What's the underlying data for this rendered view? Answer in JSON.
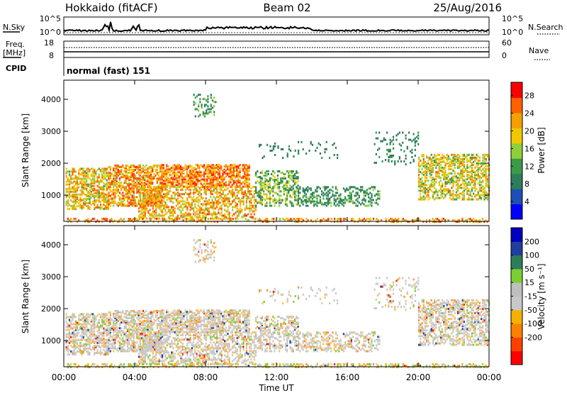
{
  "header": {
    "station": "Hokkaido (fitACF)",
    "beam": "Beam 02",
    "date": "25/Aug/2016"
  },
  "top_panels": {
    "nsky": {
      "label": "N.Sky",
      "left_ticks": [
        "10^5",
        "10^0"
      ],
      "right_ticks": [
        "10^5",
        "10^0"
      ],
      "right_label": "N.Search"
    },
    "freq": {
      "label_lines": [
        "Freq.",
        "[MHz]"
      ],
      "left_ticks": [
        "18",
        "8"
      ],
      "right_ticks": [
        "60",
        "0"
      ],
      "right_label": "Nave"
    },
    "cpid": {
      "label": "CPID",
      "text": "normal (fast) 151"
    }
  },
  "colors": {
    "power_scale": [
      "#0000ff",
      "#1e4fb4",
      "#2e7d5a",
      "#3a9a4a",
      "#8fcf3a",
      "#f0c800",
      "#f5a000",
      "#ff6000",
      "#ff2a00",
      "#ff0000"
    ],
    "velocity_scale": [
      "#0000c0",
      "#1f3fa0",
      "#2e7d5a",
      "#7ad032",
      "#bfbfbf",
      "#c8c8c8",
      "#f5b000",
      "#ff8000",
      "#ff4000",
      "#ff0000"
    ]
  },
  "chart_data": [
    {
      "type": "heatmap",
      "panel": "power",
      "ylabel": "Slant Range [km]",
      "yticks": [
        "1000",
        "2000",
        "3000",
        "4000"
      ],
      "ylim": [
        180,
        4600
      ],
      "xlim": [
        "00:00",
        "24:00"
      ],
      "colorbar": {
        "label": "Power [dB]",
        "ticks": [
          "4",
          "8",
          "12",
          "16",
          "20",
          "24",
          "28"
        ],
        "range": [
          0,
          31
        ]
      }
    },
    {
      "type": "heatmap",
      "panel": "velocity",
      "ylabel": "Slant Range [km]",
      "yticks": [
        "1000",
        "2000",
        "3000",
        "4000"
      ],
      "ylim": [
        180,
        4600
      ],
      "xlim": [
        "00:00",
        "24:00"
      ],
      "xticks": [
        "00:00",
        "04:00",
        "08:00",
        "12:00",
        "16:00",
        "20:00",
        "00:00"
      ],
      "xlabel": "Time UT",
      "colorbar": {
        "label": "Velocity [m s⁻¹]",
        "ticks": [
          "200",
          "100",
          "50",
          "15",
          "-15",
          "-50",
          "-100",
          "-200"
        ]
      }
    }
  ]
}
